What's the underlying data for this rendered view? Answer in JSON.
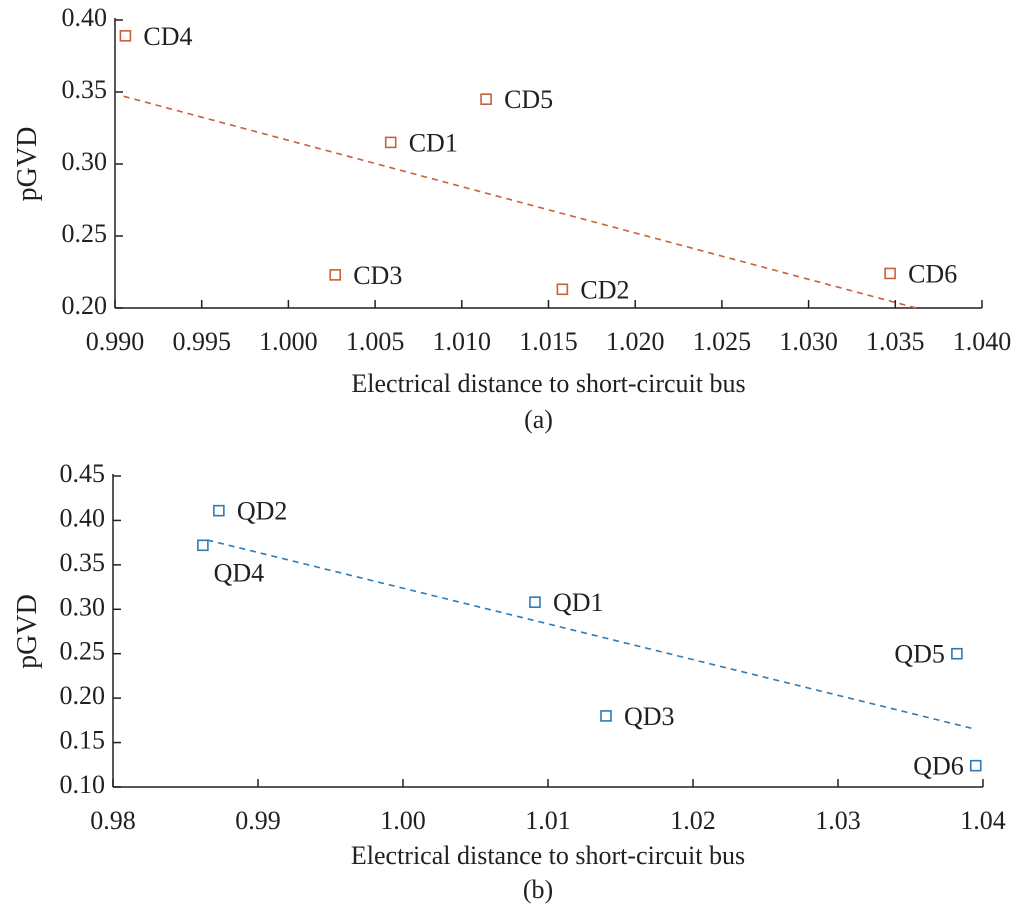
{
  "chart_data": [
    {
      "type": "scatter",
      "caption": "(a)",
      "xlabel": "Electrical distance to short-circuit bus",
      "ylabel": "pGVD",
      "xlim": [
        0.99,
        1.04
      ],
      "ylim": [
        0.2,
        0.4
      ],
      "xticks": [
        "0.990",
        "0.995",
        "1.000",
        "1.005",
        "1.010",
        "1.015",
        "1.020",
        "1.025",
        "1.030",
        "1.035",
        "1.040"
      ],
      "yticks": [
        "0.20",
        "0.25",
        "0.30",
        "0.35",
        "0.40"
      ],
      "color": "#c8603c",
      "grid": false,
      "points": [
        {
          "label": "CD4",
          "x": 0.9906,
          "y": 0.389,
          "label_pos": "right"
        },
        {
          "label": "CD5",
          "x": 1.0114,
          "y": 0.345,
          "label_pos": "right"
        },
        {
          "label": "CD1",
          "x": 1.0059,
          "y": 0.315,
          "label_pos": "right"
        },
        {
          "label": "CD3",
          "x": 1.0027,
          "y": 0.223,
          "label_pos": "right"
        },
        {
          "label": "CD2",
          "x": 1.0158,
          "y": 0.213,
          "label_pos": "right"
        },
        {
          "label": "CD6",
          "x": 1.0347,
          "y": 0.224,
          "label_pos": "right"
        }
      ],
      "trendline": {
        "x": [
          0.9905,
          1.0362
        ],
        "y": [
          0.347,
          0.2
        ]
      }
    },
    {
      "type": "scatter",
      "caption": "(b)",
      "xlabel": "Electrical distance to short-circuit bus",
      "ylabel": "pGVD",
      "xlim": [
        0.98,
        1.04
      ],
      "ylim": [
        0.1,
        0.45
      ],
      "xticks": [
        "0.98",
        "0.99",
        "1.00",
        "1.01",
        "1.02",
        "1.03",
        "1.04"
      ],
      "yticks": [
        "0.10",
        "0.15",
        "0.20",
        "0.25",
        "0.30",
        "0.35",
        "0.40",
        "0.45"
      ],
      "color": "#2f7ab5",
      "grid": false,
      "points": [
        {
          "label": "QD2",
          "x": 0.9873,
          "y": 0.411,
          "label_pos": "right"
        },
        {
          "label": "QD4",
          "x": 0.9862,
          "y": 0.372,
          "label_pos": "below"
        },
        {
          "label": "QD1",
          "x": 1.0091,
          "y": 0.308,
          "label_pos": "right"
        },
        {
          "label": "QD3",
          "x": 1.014,
          "y": 0.18,
          "label_pos": "right"
        },
        {
          "label": "QD5",
          "x": 1.0382,
          "y": 0.25,
          "label_pos": "left"
        },
        {
          "label": "QD6",
          "x": 1.0395,
          "y": 0.124,
          "label_pos": "left"
        }
      ],
      "trendline": {
        "x": [
          0.9865,
          1.0395
        ],
        "y": [
          0.378,
          0.165
        ]
      }
    }
  ]
}
